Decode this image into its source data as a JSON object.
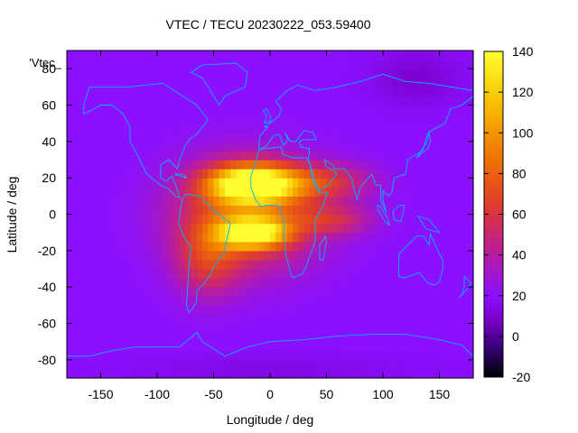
{
  "chart_data": {
    "type": "heatmap",
    "title": "VTEC / TECU 20230222_053.59400",
    "xlabel": "Longitude / deg",
    "ylabel": "Latitude / deg",
    "series_label": "'Vtec_",
    "xlim": [
      -180,
      180
    ],
    "ylim": [
      -90,
      90
    ],
    "x_ticks": [
      -150,
      -100,
      -50,
      0,
      50,
      100,
      150
    ],
    "y_ticks": [
      -80,
      -60,
      -40,
      -20,
      0,
      20,
      40,
      60,
      80
    ],
    "colorbar": {
      "range": [
        -20,
        140
      ],
      "ticks": [
        -20,
        0,
        20,
        40,
        60,
        80,
        100,
        120,
        140
      ],
      "palette": [
        "#000000",
        "#3a007a",
        "#7a00c8",
        "#8a10ff",
        "#c0208a",
        "#e03c2a",
        "#f07a00",
        "#f8c000",
        "#ffff30"
      ],
      "palette_stops": [
        -20,
        -5,
        8,
        20,
        45,
        65,
        90,
        115,
        140
      ]
    },
    "background_vtec": 20,
    "ionosphere_features": [
      {
        "name": "equatorial anomaly north",
        "lon": -15,
        "lat": 17,
        "peak": 128,
        "lon_width": 38,
        "lat_width": 10
      },
      {
        "name": "equatorial anomaly south",
        "lon": -15,
        "lat": -10,
        "peak": 100,
        "lon_width": 30,
        "lat_width": 8
      },
      {
        "name": "daytime bulge",
        "lon": -20,
        "lat": 0,
        "peak": 60,
        "lon_width": 60,
        "lat_width": 28
      },
      {
        "name": "south america lobe",
        "lon": -55,
        "lat": -25,
        "peak": 35,
        "lon_width": 28,
        "lat_width": 20
      },
      {
        "name": "arabian tail",
        "lon": 50,
        "lat": 18,
        "peak": 35,
        "lon_width": 40,
        "lat_width": 10
      },
      {
        "name": "indian tail",
        "lon": 55,
        "lat": -3,
        "peak": 30,
        "lon_width": 35,
        "lat_width": 8
      },
      {
        "name": "north polar low",
        "lon": 130,
        "lat": 75,
        "peak": -10,
        "lon_width": 40,
        "lat_width": 15
      },
      {
        "name": "south polar low",
        "lon": 0,
        "lat": -85,
        "peak": -6,
        "lon_width": 120,
        "lat_width": 8
      }
    ],
    "coastlines": [
      {
        "name": "north america",
        "lonlat": [
          [
            -165,
            60
          ],
          [
            -160,
            70
          ],
          [
            -140,
            70
          ],
          [
            -125,
            70
          ],
          [
            -95,
            72
          ],
          [
            -80,
            66
          ],
          [
            -65,
            60
          ],
          [
            -55,
            52
          ],
          [
            -65,
            44
          ],
          [
            -70,
            42
          ],
          [
            -75,
            38
          ],
          [
            -80,
            30
          ],
          [
            -82,
            25
          ],
          [
            -90,
            30
          ],
          [
            -97,
            27
          ],
          [
            -97,
            20
          ],
          [
            -92,
            18
          ],
          [
            -87,
            21
          ],
          [
            -83,
            15
          ],
          [
            -80,
            9
          ],
          [
            -84,
            10
          ],
          [
            -90,
            14
          ],
          [
            -97,
            16
          ],
          [
            -105,
            20
          ],
          [
            -110,
            23
          ],
          [
            -117,
            32
          ],
          [
            -124,
            40
          ],
          [
            -124,
            48
          ],
          [
            -130,
            55
          ],
          [
            -140,
            60
          ],
          [
            -150,
            60
          ],
          [
            -165,
            55
          ],
          [
            -165,
            60
          ]
        ]
      },
      {
        "name": "south america",
        "lonlat": [
          [
            -78,
            8
          ],
          [
            -75,
            11
          ],
          [
            -62,
            10
          ],
          [
            -50,
            2
          ],
          [
            -35,
            -5
          ],
          [
            -38,
            -13
          ],
          [
            -41,
            -22
          ],
          [
            -48,
            -27
          ],
          [
            -53,
            -33
          ],
          [
            -58,
            -38
          ],
          [
            -65,
            -42
          ],
          [
            -65,
            -48
          ],
          [
            -69,
            -52
          ],
          [
            -72,
            -54
          ],
          [
            -74,
            -50
          ],
          [
            -73,
            -40
          ],
          [
            -72,
            -30
          ],
          [
            -70,
            -18
          ],
          [
            -76,
            -13
          ],
          [
            -81,
            -5
          ],
          [
            -80,
            0
          ],
          [
            -78,
            8
          ]
        ]
      },
      {
        "name": "africa",
        "lonlat": [
          [
            -17,
            15
          ],
          [
            -17,
            21
          ],
          [
            -13,
            28
          ],
          [
            -10,
            35
          ],
          [
            -5,
            36
          ],
          [
            10,
            37
          ],
          [
            11,
            33
          ],
          [
            20,
            31
          ],
          [
            32,
            31
          ],
          [
            35,
            28
          ],
          [
            38,
            18
          ],
          [
            43,
            12
          ],
          [
            51,
            12
          ],
          [
            47,
            5
          ],
          [
            40,
            -3
          ],
          [
            40,
            -15
          ],
          [
            35,
            -23
          ],
          [
            32,
            -29
          ],
          [
            28,
            -33
          ],
          [
            20,
            -35
          ],
          [
            18,
            -32
          ],
          [
            14,
            -22
          ],
          [
            12,
            -12
          ],
          [
            13,
            -5
          ],
          [
            9,
            0
          ],
          [
            9,
            4
          ],
          [
            5,
            5
          ],
          [
            -4,
            5
          ],
          [
            -8,
            4
          ],
          [
            -13,
            8
          ],
          [
            -17,
            15
          ]
        ]
      },
      {
        "name": "europe asia",
        "lonlat": [
          [
            -10,
            36
          ],
          [
            -9,
            43
          ],
          [
            -2,
            48
          ],
          [
            -5,
            48
          ],
          [
            2,
            51
          ],
          [
            8,
            54
          ],
          [
            10,
            58
          ],
          [
            5,
            62
          ],
          [
            15,
            68
          ],
          [
            25,
            71
          ],
          [
            40,
            68
          ],
          [
            60,
            70
          ],
          [
            80,
            73
          ],
          [
            100,
            77
          ],
          [
            120,
            73
          ],
          [
            140,
            72
          ],
          [
            160,
            70
          ],
          [
            180,
            68
          ],
          [
            180,
            65
          ],
          [
            170,
            60
          ],
          [
            160,
            58
          ],
          [
            155,
            50
          ],
          [
            140,
            45
          ],
          [
            135,
            35
          ],
          [
            122,
            30
          ],
          [
            120,
            22
          ],
          [
            110,
            20
          ],
          [
            108,
            12
          ],
          [
            105,
            10
          ],
          [
            100,
            13
          ],
          [
            100,
            8
          ],
          [
            103,
            1
          ],
          [
            98,
            8
          ],
          [
            98,
            16
          ],
          [
            94,
            16
          ],
          [
            90,
            22
          ],
          [
            80,
            15
          ],
          [
            77,
            8
          ],
          [
            72,
            20
          ],
          [
            66,
            25
          ],
          [
            57,
            25
          ],
          [
            56,
            27
          ],
          [
            48,
            30
          ],
          [
            50,
            26
          ],
          [
            56,
            24
          ],
          [
            59,
            22
          ],
          [
            52,
            16
          ],
          [
            43,
            13
          ],
          [
            40,
            18
          ],
          [
            35,
            28
          ],
          [
            34,
            30
          ],
          [
            35,
            36
          ],
          [
            27,
            37
          ],
          [
            26,
            40
          ],
          [
            29,
            41
          ],
          [
            41,
            41
          ],
          [
            38,
            45
          ],
          [
            30,
            46
          ],
          [
            23,
            40
          ],
          [
            20,
            40
          ],
          [
            18,
            40
          ],
          [
            13,
            45
          ],
          [
            16,
            41
          ],
          [
            12,
            38
          ],
          [
            8,
            44
          ],
          [
            3,
            43
          ],
          [
            -4,
            37
          ],
          [
            -10,
            36
          ]
        ]
      },
      {
        "name": "australia",
        "lonlat": [
          [
            114,
            -22
          ],
          [
            114,
            -34
          ],
          [
            118,
            -35
          ],
          [
            124,
            -34
          ],
          [
            132,
            -32
          ],
          [
            136,
            -35
          ],
          [
            140,
            -38
          ],
          [
            146,
            -39
          ],
          [
            150,
            -37
          ],
          [
            153,
            -30
          ],
          [
            153,
            -25
          ],
          [
            150,
            -22
          ],
          [
            145,
            -15
          ],
          [
            142,
            -11
          ],
          [
            141,
            -17
          ],
          [
            136,
            -12
          ],
          [
            130,
            -12
          ],
          [
            122,
            -17
          ],
          [
            114,
            -22
          ]
        ]
      },
      {
        "name": "greenland",
        "lonlat": [
          [
            -45,
            60
          ],
          [
            -40,
            65
          ],
          [
            -22,
            70
          ],
          [
            -20,
            78
          ],
          [
            -30,
            83
          ],
          [
            -60,
            82
          ],
          [
            -70,
            78
          ],
          [
            -60,
            75
          ],
          [
            -55,
            70
          ],
          [
            -50,
            65
          ],
          [
            -45,
            60
          ]
        ]
      },
      {
        "name": "antarctica",
        "lonlat": [
          [
            -180,
            -78
          ],
          [
            -160,
            -78
          ],
          [
            -140,
            -75
          ],
          [
            -120,
            -73
          ],
          [
            -100,
            -73
          ],
          [
            -80,
            -73
          ],
          [
            -65,
            -65
          ],
          [
            -60,
            -70
          ],
          [
            -40,
            -78
          ],
          [
            -20,
            -73
          ],
          [
            0,
            -70
          ],
          [
            30,
            -69
          ],
          [
            60,
            -67
          ],
          [
            90,
            -66
          ],
          [
            120,
            -66
          ],
          [
            150,
            -69
          ],
          [
            170,
            -72
          ],
          [
            180,
            -78
          ]
        ]
      },
      {
        "name": "borneo",
        "lonlat": [
          [
            109,
            2
          ],
          [
            115,
            5
          ],
          [
            119,
            5
          ],
          [
            118,
            1
          ],
          [
            116,
            -4
          ],
          [
            110,
            -3
          ],
          [
            109,
            2
          ]
        ]
      },
      {
        "name": "sumatra",
        "lonlat": [
          [
            95,
            5
          ],
          [
            98,
            4
          ],
          [
            104,
            -2
          ],
          [
            106,
            -6
          ],
          [
            102,
            -4
          ],
          [
            96,
            2
          ],
          [
            95,
            5
          ]
        ]
      },
      {
        "name": "new guinea",
        "lonlat": [
          [
            131,
            -1
          ],
          [
            141,
            -3
          ],
          [
            150,
            -10
          ],
          [
            143,
            -9
          ],
          [
            138,
            -8
          ],
          [
            131,
            -1
          ]
        ]
      },
      {
        "name": "japan",
        "lonlat": [
          [
            130,
            31
          ],
          [
            135,
            34
          ],
          [
            140,
            36
          ],
          [
            142,
            40
          ],
          [
            141,
            45
          ],
          [
            139,
            40
          ],
          [
            133,
            34
          ],
          [
            130,
            31
          ]
        ]
      },
      {
        "name": "great britain",
        "lonlat": [
          [
            -5,
            50
          ],
          [
            1,
            51
          ],
          [
            0,
            54
          ],
          [
            -3,
            58
          ],
          [
            -6,
            57
          ],
          [
            -3,
            54
          ],
          [
            -5,
            50
          ]
        ]
      },
      {
        "name": "madagascar",
        "lonlat": [
          [
            44,
            -25
          ],
          [
            47,
            -25
          ],
          [
            50,
            -15
          ],
          [
            49,
            -12
          ],
          [
            44,
            -17
          ],
          [
            44,
            -25
          ]
        ]
      },
      {
        "name": "new zealand",
        "lonlat": [
          [
            172,
            -34
          ],
          [
            178,
            -38
          ],
          [
            175,
            -41
          ],
          [
            167,
            -46
          ],
          [
            170,
            -44
          ],
          [
            172,
            -40
          ],
          [
            172,
            -34
          ]
        ]
      },
      {
        "name": "cuba",
        "lonlat": [
          [
            -85,
            22
          ],
          [
            -74,
            20
          ],
          [
            -77,
            22
          ],
          [
            -85,
            22
          ]
        ]
      }
    ]
  }
}
